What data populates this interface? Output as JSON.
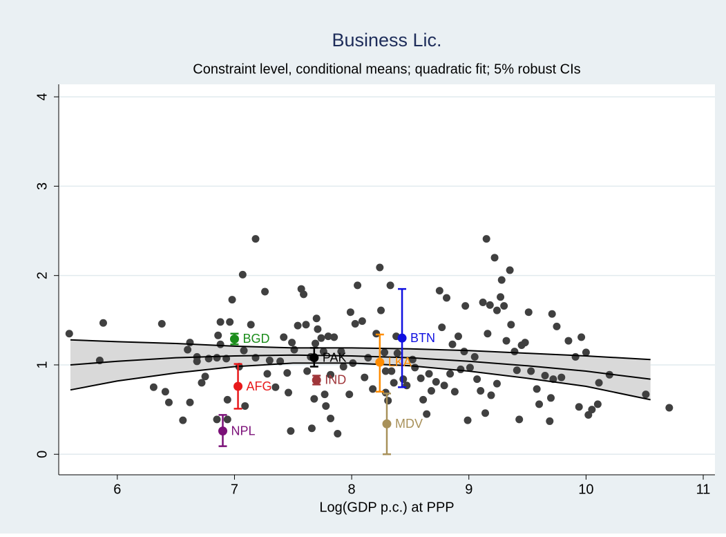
{
  "chart_data": {
    "type": "scatter",
    "title": "Business Lic.",
    "subtitle": "Constraint level, conditional means; quadratic fit; 5% robust CIs",
    "xlabel": "Log(GDP p.c.) at PPP",
    "xlim": [
      5.5,
      11.1
    ],
    "xticks": [
      6,
      7,
      8,
      9,
      10,
      11
    ],
    "ylim": [
      -0.23,
      4.14
    ],
    "yticks": [
      0,
      1,
      2,
      3,
      4
    ],
    "grid": true,
    "points": {
      "color": "#404040",
      "x": [
        5.59,
        5.88,
        5.85,
        6.31,
        6.41,
        6.38,
        6.44,
        6.56,
        6.62,
        6.62,
        6.6,
        6.68,
        6.68,
        6.75,
        6.72,
        6.78,
        6.85,
        6.86,
        6.88,
        6.88,
        6.85,
        6.93,
        6.96,
        6.98,
        6.94,
        6.94,
        7.04,
        7.07,
        7.14,
        7.18,
        7.18,
        7.08,
        7.09,
        7.26,
        7.3,
        7.28,
        7.35,
        7.39,
        7.42,
        7.45,
        7.46,
        7.48,
        7.49,
        7.51,
        7.54,
        7.57,
        7.59,
        7.61,
        7.62,
        7.65,
        7.66,
        7.68,
        7.69,
        7.7,
        7.71,
        7.74,
        7.76,
        7.77,
        7.78,
        7.8,
        7.82,
        7.82,
        7.85,
        7.88,
        7.91,
        7.93,
        7.98,
        7.99,
        8.01,
        8.03,
        8.05,
        8.09,
        8.11,
        8.14,
        8.18,
        8.21,
        8.24,
        8.25,
        8.28,
        8.29,
        8.29,
        8.31,
        8.33,
        8.34,
        8.36,
        8.38,
        8.39,
        8.44,
        8.47,
        8.52,
        8.54,
        8.59,
        8.61,
        8.64,
        8.66,
        8.68,
        8.72,
        8.75,
        8.77,
        8.79,
        8.81,
        8.84,
        8.86,
        8.88,
        8.91,
        8.93,
        8.96,
        8.97,
        8.99,
        9.01,
        9.05,
        9.07,
        9.1,
        9.12,
        9.14,
        9.15,
        9.16,
        9.18,
        9.19,
        9.22,
        9.24,
        9.24,
        9.27,
        9.28,
        9.3,
        9.32,
        9.35,
        9.36,
        9.39,
        9.41,
        9.43,
        9.45,
        9.48,
        9.51,
        9.53,
        9.58,
        9.6,
        9.65,
        9.69,
        9.7,
        9.71,
        9.72,
        9.75,
        9.79,
        9.85,
        9.91,
        9.94,
        9.96,
        10.0,
        10.02,
        10.05,
        10.1,
        10.11,
        10.2,
        10.51,
        10.71
      ],
      "y": [
        1.35,
        1.47,
        1.05,
        0.75,
        0.7,
        1.46,
        0.58,
        0.38,
        0.58,
        1.25,
        1.17,
        1.09,
        1.04,
        0.87,
        0.8,
        1.07,
        0.39,
        1.33,
        1.48,
        1.23,
        1.08,
        1.07,
        1.48,
        1.73,
        0.61,
        0.39,
        0.98,
        2.01,
        1.45,
        2.41,
        1.08,
        1.16,
        0.54,
        1.82,
        1.05,
        0.9,
        0.75,
        1.04,
        1.31,
        0.91,
        0.69,
        0.26,
        1.25,
        1.17,
        1.44,
        1.85,
        1.79,
        1.45,
        0.93,
        1.09,
        0.29,
        0.62,
        1.24,
        1.52,
        1.4,
        1.3,
        1.15,
        0.67,
        0.54,
        1.32,
        0.89,
        0.4,
        1.31,
        0.23,
        1.15,
        0.98,
        0.67,
        1.59,
        1.02,
        1.46,
        1.89,
        1.49,
        0.86,
        1.08,
        0.73,
        1.35,
        2.09,
        1.61,
        1.14,
        0.93,
        0.69,
        0.6,
        1.89,
        0.93,
        0.8,
        1.32,
        1.13,
        0.84,
        0.77,
        1.06,
        0.97,
        0.85,
        0.61,
        0.45,
        0.9,
        0.71,
        0.81,
        1.83,
        1.42,
        0.77,
        1.75,
        0.9,
        1.23,
        0.7,
        1.32,
        0.95,
        1.15,
        1.66,
        0.38,
        0.97,
        1.09,
        0.84,
        0.71,
        1.7,
        0.46,
        2.41,
        1.35,
        1.67,
        0.66,
        2.2,
        1.61,
        0.79,
        1.76,
        1.95,
        1.66,
        1.27,
        2.06,
        1.45,
        1.15,
        0.94,
        0.39,
        1.22,
        1.25,
        1.59,
        0.93,
        0.73,
        0.56,
        0.88,
        0.37,
        0.63,
        1.57,
        0.84,
        1.43,
        0.86,
        1.27,
        1.09,
        0.53,
        1.31,
        1.14,
        0.44,
        0.5,
        0.56,
        0.8,
        0.89,
        0.67,
        0.52
      ]
    },
    "fit": {
      "color": "#000000",
      "band_color": "#d9d9d9",
      "x": [
        5.6,
        6.0,
        6.5,
        7.0,
        7.5,
        8.0,
        8.5,
        9.0,
        9.5,
        10.0,
        10.55
      ],
      "values": [
        1.0,
        1.04,
        1.08,
        1.1,
        1.11,
        1.1,
        1.08,
        1.04,
        0.99,
        0.93,
        0.84
      ],
      "ci_upper": [
        1.28,
        1.26,
        1.24,
        1.21,
        1.19,
        1.19,
        1.18,
        1.16,
        1.13,
        1.1,
        1.06
      ],
      "ci_lower": [
        0.72,
        0.82,
        0.91,
        0.98,
        1.02,
        1.02,
        0.99,
        0.93,
        0.85,
        0.76,
        0.61
      ]
    },
    "countries": [
      {
        "label": "BGD",
        "color": "#1a8c1a",
        "x": 7.0,
        "value": 1.29,
        "ci": [
          1.23,
          1.35
        ]
      },
      {
        "label": "AFG",
        "color": "#e8191b",
        "x": 7.03,
        "value": 0.76,
        "ci": [
          0.51,
          1.01
        ]
      },
      {
        "label": "NPL",
        "color": "#7b1078",
        "x": 6.9,
        "value": 0.26,
        "ci": [
          0.09,
          0.44
        ]
      },
      {
        "label": "PAK",
        "color": "#000000",
        "x": 7.68,
        "value": 1.08,
        "ci": [
          0.98,
          1.19
        ]
      },
      {
        "label": "IND",
        "color": "#a0363a",
        "x": 7.7,
        "value": 0.83,
        "ci": [
          0.78,
          0.88
        ]
      },
      {
        "label": "LKA",
        "color": "#ff8c00",
        "x": 8.24,
        "value": 1.03,
        "ci": [
          0.7,
          1.34
        ]
      },
      {
        "label": "MDV",
        "color": "#a8915a",
        "x": 8.3,
        "value": 0.34,
        "ci": [
          0.0,
          0.68
        ]
      },
      {
        "label": "BTN",
        "color": "#1010e0",
        "x": 8.43,
        "value": 1.3,
        "ci": [
          0.75,
          1.85
        ]
      }
    ]
  }
}
